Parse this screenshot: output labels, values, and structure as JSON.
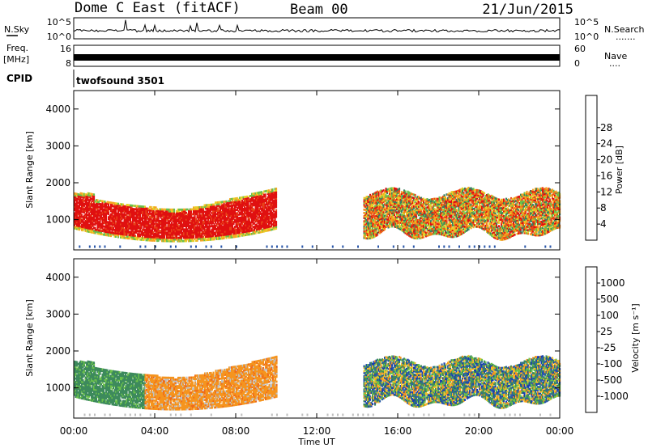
{
  "header": {
    "station": "Dome C East (fitACF)",
    "beam": "Beam 00",
    "date": "21/Jun/2015"
  },
  "status_panels": {
    "nsky": {
      "label": "N.Sky",
      "ticks_left": [
        "10^5",
        "10^0"
      ],
      "right_label": "N.Search",
      "right_dots": ".......",
      "ticks_right": [
        "10^5",
        "10^0"
      ]
    },
    "freq": {
      "label_line1": "Freq.",
      "label_line2": "[MHz]",
      "ticks_left": [
        "16",
        "8"
      ],
      "right_label": "Nave",
      "right_dots": "....",
      "ticks_right": [
        "60",
        "0"
      ]
    },
    "cpid": {
      "label": "CPID",
      "program": "twofsound 3501"
    }
  },
  "chart_data": [
    {
      "type": "heatmap",
      "panel": "power",
      "ylabel": "Slant Range [km]",
      "xlabel": "Time UT",
      "x_ticks": [
        "00:00",
        "04:00",
        "08:00",
        "12:00",
        "16:00",
        "20:00",
        "00:00"
      ],
      "x_range_hours": [
        0,
        24
      ],
      "ylim": [
        180,
        4500
      ],
      "y_ticks": [
        1000,
        2000,
        3000,
        4000
      ],
      "colorbar": {
        "label": "Power [dB]",
        "ticks": [
          "4",
          "8",
          "12",
          "16",
          "20",
          "24",
          "28"
        ],
        "colors": [
          "#1a1aff",
          "#2a56a8",
          "#3b7f5e",
          "#6abf4b",
          "#e6d028",
          "#f5a623",
          "#f07d18",
          "#e84418",
          "#e01010"
        ]
      },
      "echo_regions": [
        {
          "t_start": 0.0,
          "t_end": 10.0,
          "range_min": 400,
          "range_max": 1800,
          "dominant_level": "28+"
        },
        {
          "t_start": 14.3,
          "t_end": 24.0,
          "range_min": 500,
          "range_max": 1800,
          "dominant_level": "12-28"
        }
      ]
    },
    {
      "type": "heatmap",
      "panel": "velocity",
      "ylabel": "Slant Range [km]",
      "xlabel": "Time UT",
      "x_ticks": [
        "00:00",
        "04:00",
        "08:00",
        "12:00",
        "16:00",
        "20:00",
        "00:00"
      ],
      "x_range_hours": [
        0,
        24
      ],
      "ylim": [
        180,
        4500
      ],
      "y_ticks": [
        1000,
        2000,
        3000,
        4000
      ],
      "colorbar": {
        "label": "Velocity [m s⁻¹]",
        "ticks": [
          "1000",
          "500",
          "100",
          "25",
          "-25",
          "-100",
          "-500",
          "-1000"
        ],
        "colors": [
          "#1a3fb0",
          "#2e5fa8",
          "#3d8a5c",
          "#6cc24a",
          "#bfbfbf",
          "#f2c12e",
          "#f5941e",
          "#ef6a1a",
          "#e01010"
        ]
      },
      "echo_regions": [
        {
          "t_start": 0.0,
          "t_end": 3.5,
          "range_min": 400,
          "range_max": 1700,
          "dominant_velocity": "25 to 100 (green)"
        },
        {
          "t_start": 3.5,
          "t_end": 10.0,
          "range_min": 400,
          "range_max": 1800,
          "dominant_velocity": "-100 to -500 (orange)"
        },
        {
          "t_start": 14.3,
          "t_end": 24.0,
          "range_min": 500,
          "range_max": 1800,
          "dominant_velocity": "mixed"
        }
      ]
    }
  ]
}
